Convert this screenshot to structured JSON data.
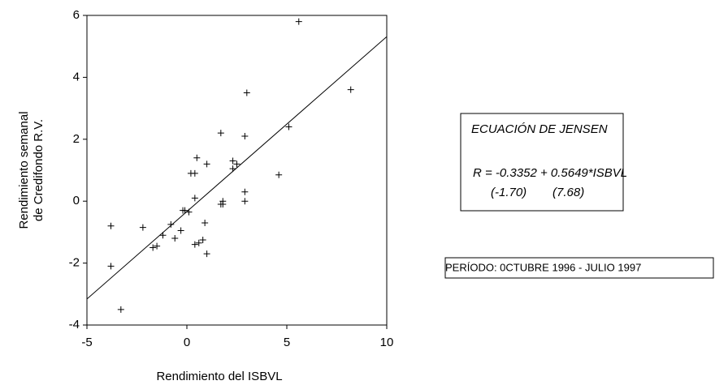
{
  "chart_data": {
    "type": "scatter",
    "x_label": "Rendimiento del ISBVL",
    "y_label": [
      "Rendimiento semanal",
      "de Credifondo R.V."
    ],
    "x": [
      5.6,
      8.2,
      3.0,
      1.7,
      5.1,
      2.9,
      0.5,
      2.3,
      2.5,
      1.0,
      2.3,
      0.2,
      0.4,
      4.6,
      -3.8,
      -2.2,
      0.4,
      1.8,
      1.8,
      1.7,
      2.9,
      2.9,
      -0.2,
      0.1,
      -0.1,
      0.9,
      -0.8,
      -1.2,
      -0.3,
      -0.6,
      0.8,
      0.6,
      0.4,
      -1.5,
      -1.7,
      1.0,
      -3.8,
      -3.3
    ],
    "values": [
      5.8,
      3.6,
      3.5,
      2.2,
      2.4,
      2.1,
      1.4,
      1.3,
      1.2,
      1.2,
      1.05,
      0.9,
      0.9,
      0.85,
      -0.8,
      -0.85,
      0.1,
      0.0,
      -0.1,
      -0.1,
      0.3,
      0.0,
      -0.3,
      -0.35,
      -0.3,
      -0.7,
      -0.75,
      -1.1,
      -0.95,
      -1.2,
      -1.25,
      -1.35,
      -1.4,
      -1.45,
      -1.5,
      -1.7,
      -2.1,
      -3.5
    ],
    "color": "#000000",
    "regression": {
      "intercept": -0.3352,
      "slope": 0.5649
    },
    "xlim": [
      -5,
      10
    ],
    "xticks": [
      -5,
      0,
      5,
      10
    ],
    "ylim": [
      -4,
      6
    ],
    "yticks": [
      -4,
      -2,
      0,
      2,
      4,
      6
    ],
    "grid": false,
    "annotations": {
      "title": "ECUACIÓN DE JENSEN",
      "equation": "R = -0.3352 + 0.5649*ISBVL",
      "t_intercept": "(-1.70)",
      "t_slope": "(7.68)",
      "period": "PERÍODO: 0CTUBRE 1996 - JULIO 1997"
    }
  }
}
